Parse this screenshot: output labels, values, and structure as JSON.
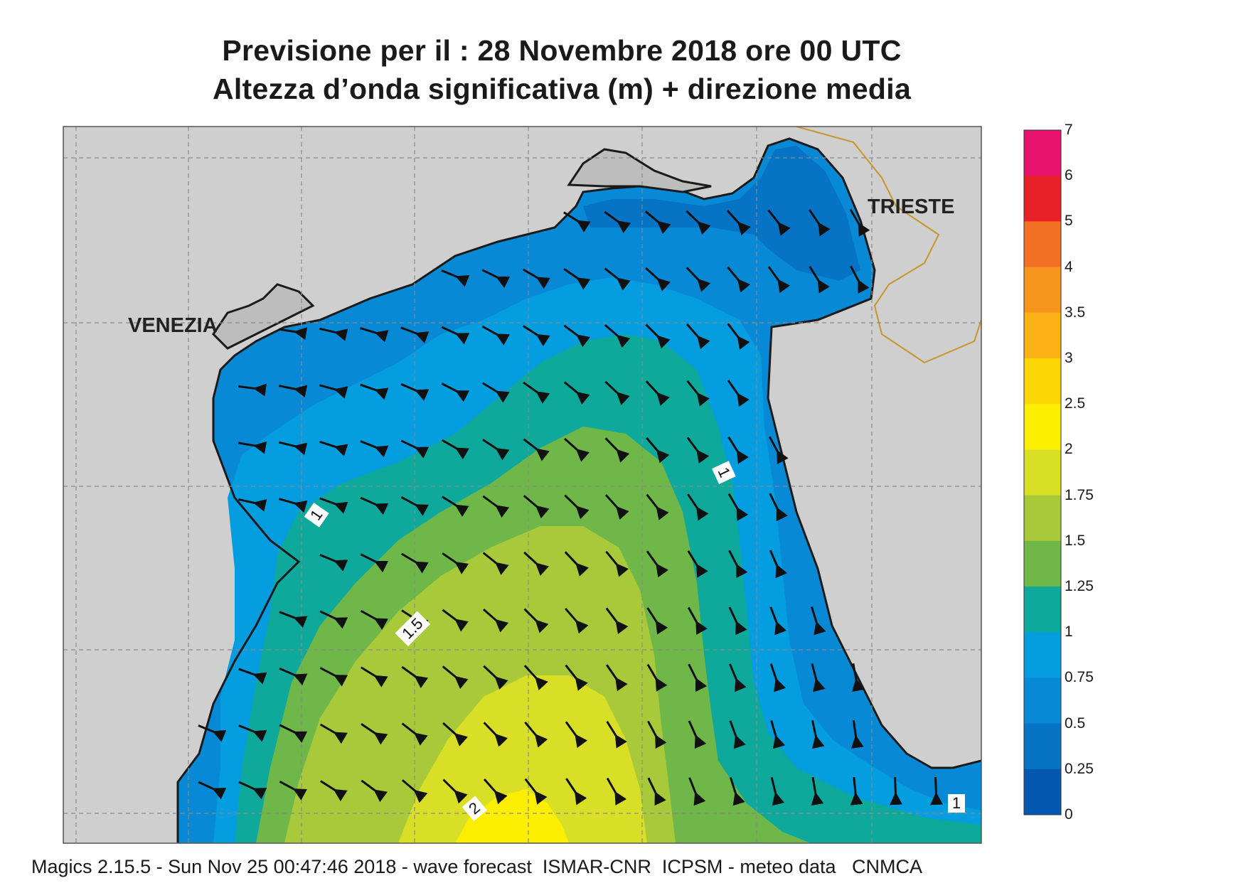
{
  "title_line1": "Previsione per il  :  28 Novembre  2018   ore 00 UTC",
  "title_line2": "Altezza d’onda significativa (m) + direzione media",
  "places": [
    {
      "name": "VENEZIA"
    },
    {
      "name": "TRIESTE"
    }
  ],
  "contour_labels": [
    "1",
    "1",
    "1.5",
    "2",
    "1"
  ],
  "colorbar": {
    "ticks": [
      "7",
      "6",
      "5",
      "4",
      "3.5",
      "3",
      "2.5",
      "2",
      "1.75",
      "1.5",
      "1.25",
      "1",
      "0.75",
      "0.5",
      "0.25",
      "0"
    ],
    "colors": [
      "#e8136e",
      "#e82128",
      "#f27024",
      "#f7941d",
      "#fbb216",
      "#fbd604",
      "#fcee00",
      "#d8df26",
      "#a8c93a",
      "#70b74a",
      "#0fa99c",
      "#049de0",
      "#0889d6",
      "#0673c4",
      "#0257ae"
    ]
  },
  "footer": "Magics 2.15.5 - Sun Nov 25 00:47:46 2018 - wave forecast  ISMAR-CNR  ICPSM - meteo data   CNMCA"
}
